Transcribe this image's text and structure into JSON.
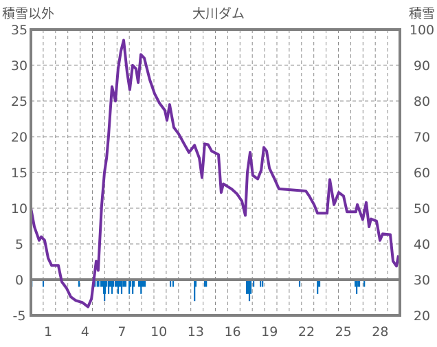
{
  "chart_data": {
    "type": "line",
    "title": "大川ダム",
    "ylabel_left": "積雪以外",
    "ylabel_right": "積雪",
    "xlim": [
      0,
      30
    ],
    "ylim_left": [
      -5,
      35
    ],
    "ylim_right": [
      20,
      100
    ],
    "yticks_left": [
      -5,
      0,
      5,
      10,
      15,
      20,
      25,
      30,
      35
    ],
    "yticks_right": [
      20,
      30,
      40,
      50,
      60,
      70,
      80,
      90,
      100
    ],
    "xtick_labels": [
      "1",
      "4",
      "7",
      "10",
      "13",
      "16",
      "19",
      "22",
      "25",
      "28"
    ],
    "grid": true,
    "colors": {
      "line": "#7030A0",
      "bars": "#0070C0",
      "frame": "#808080",
      "grid": "#8c8c8c"
    },
    "series": [
      {
        "name": "積雪以外",
        "kind": "line",
        "points": [
          [
            0,
            10
          ],
          [
            0.28,
            7.4
          ],
          [
            0.67,
            5.5
          ],
          [
            0.84,
            6
          ],
          [
            1.12,
            5.5
          ],
          [
            1.4,
            3
          ],
          [
            1.68,
            2
          ],
          [
            2.23,
            2
          ],
          [
            2.51,
            -0.3
          ],
          [
            2.9,
            -1.2
          ],
          [
            3.24,
            -2.4
          ],
          [
            3.63,
            -2.9
          ],
          [
            4.19,
            -3.2
          ],
          [
            4.64,
            -3.8
          ],
          [
            4.92,
            -2.7
          ],
          [
            5.31,
            2.6
          ],
          [
            5.47,
            1.3
          ],
          [
            5.75,
            10.3
          ],
          [
            5.98,
            15
          ],
          [
            6.15,
            17
          ],
          [
            6.31,
            20
          ],
          [
            6.59,
            27
          ],
          [
            6.87,
            25
          ],
          [
            7.09,
            29.5
          ],
          [
            7.32,
            32
          ],
          [
            7.54,
            33.5
          ],
          [
            7.82,
            29
          ],
          [
            8.04,
            26.6
          ],
          [
            8.27,
            30
          ],
          [
            8.55,
            29.5
          ],
          [
            8.72,
            27.6
          ],
          [
            8.94,
            31.5
          ],
          [
            9.22,
            31
          ],
          [
            9.66,
            28
          ],
          [
            10.06,
            26
          ],
          [
            10.45,
            24.7
          ],
          [
            10.89,
            23.7
          ],
          [
            11.06,
            22.3
          ],
          [
            11.28,
            24.5
          ],
          [
            11.62,
            21.3
          ],
          [
            12.01,
            20.4
          ],
          [
            12.46,
            19
          ],
          [
            12.85,
            17.8
          ],
          [
            13.3,
            18.8
          ],
          [
            13.69,
            17
          ],
          [
            13.91,
            14.3
          ],
          [
            14.13,
            19
          ],
          [
            14.41,
            18.9
          ],
          [
            14.69,
            18
          ],
          [
            15.25,
            17.5
          ],
          [
            15.47,
            12.2
          ],
          [
            15.64,
            13.4
          ],
          [
            16.31,
            12.7
          ],
          [
            16.76,
            12
          ],
          [
            17.15,
            11
          ],
          [
            17.43,
            9
          ],
          [
            17.6,
            15
          ],
          [
            17.82,
            17.8
          ],
          [
            18.04,
            14.6
          ],
          [
            18.44,
            14.1
          ],
          [
            18.72,
            15.3
          ],
          [
            18.94,
            18.5
          ],
          [
            19.16,
            18
          ],
          [
            19.39,
            15.6
          ],
          [
            19.83,
            14
          ],
          [
            20.17,
            12.7
          ],
          [
            22.35,
            12.4
          ],
          [
            22.63,
            11.7
          ],
          [
            23.02,
            10.5
          ],
          [
            23.3,
            9.3
          ],
          [
            24.08,
            9.3
          ],
          [
            24.3,
            14
          ],
          [
            24.64,
            10.5
          ],
          [
            25.03,
            12.2
          ],
          [
            25.42,
            11.7
          ],
          [
            25.7,
            9.5
          ],
          [
            26.42,
            9.5
          ],
          [
            26.54,
            10.5
          ],
          [
            26.98,
            8.4
          ],
          [
            27.26,
            10.8
          ],
          [
            27.49,
            7.4
          ],
          [
            27.65,
            8.5
          ],
          [
            28.1,
            8.2
          ],
          [
            28.38,
            5.5
          ],
          [
            28.6,
            6.4
          ],
          [
            29.22,
            6.3
          ],
          [
            29.44,
            2.6
          ],
          [
            29.72,
            1.9
          ],
          [
            29.89,
            3.4
          ]
        ]
      },
      {
        "name": "bars",
        "kind": "bar",
        "points": [
          [
            0.06,
            -1
          ],
          [
            1.0,
            -1
          ],
          [
            3.9,
            -1
          ],
          [
            5.1,
            -1
          ],
          [
            5.2,
            -1
          ],
          [
            5.4,
            -1
          ],
          [
            5.5,
            -1
          ],
          [
            5.7,
            -1
          ],
          [
            5.8,
            -1
          ],
          [
            5.92,
            -2
          ],
          [
            5.98,
            -3
          ],
          [
            6.03,
            -2
          ],
          [
            6.15,
            -1
          ],
          [
            6.31,
            -2
          ],
          [
            6.4,
            -1
          ],
          [
            6.5,
            -1
          ],
          [
            6.59,
            -2
          ],
          [
            6.7,
            -1
          ],
          [
            6.87,
            -1
          ],
          [
            6.98,
            -1
          ],
          [
            7.09,
            -2
          ],
          [
            7.2,
            -1
          ],
          [
            7.3,
            -1
          ],
          [
            7.37,
            -2
          ],
          [
            7.5,
            -1
          ],
          [
            7.6,
            -1
          ],
          [
            7.7,
            -1
          ],
          [
            7.99,
            -2
          ],
          [
            8.1,
            -1
          ],
          [
            8.27,
            -2
          ],
          [
            8.38,
            -1
          ],
          [
            8.77,
            -1
          ],
          [
            8.88,
            -1
          ],
          [
            8.95,
            -2
          ],
          [
            9.05,
            -1
          ],
          [
            9.15,
            -1
          ],
          [
            9.27,
            -1
          ],
          [
            11.34,
            -1
          ],
          [
            11.56,
            -1
          ],
          [
            13.3,
            -3
          ],
          [
            13.4,
            -1
          ],
          [
            14.13,
            -1
          ],
          [
            14.25,
            -1
          ],
          [
            17.54,
            -2
          ],
          [
            17.65,
            -2
          ],
          [
            17.76,
            -3
          ],
          [
            17.87,
            -2
          ],
          [
            18.1,
            -1
          ],
          [
            18.66,
            -1
          ],
          [
            18.83,
            -1
          ],
          [
            21.84,
            -1
          ],
          [
            23.3,
            -2
          ],
          [
            23.4,
            -1
          ],
          [
            23.46,
            -1
          ],
          [
            26.37,
            -1
          ],
          [
            26.48,
            -2
          ],
          [
            26.6,
            -1
          ],
          [
            26.7,
            -1
          ],
          [
            27.1,
            -1
          ]
        ]
      }
    ]
  }
}
